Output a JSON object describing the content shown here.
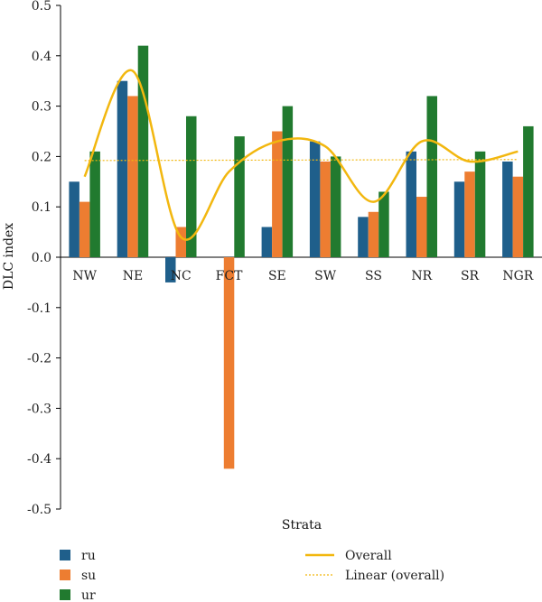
{
  "chart_data": {
    "type": "bar",
    "xlabel": "Strata",
    "ylabel": "DLC index",
    "ylim": [
      -0.5,
      0.5
    ],
    "yticks": [
      "-0.5",
      "-0.4",
      "-0.3",
      "-0.2",
      "-0.1",
      "0.0",
      "0.1",
      "0.2",
      "0.3",
      "0.4",
      "0.5"
    ],
    "categories": [
      "NW",
      "NE",
      "NC",
      "FCT",
      "SE",
      "SW",
      "SS",
      "NR",
      "SR",
      "NGR"
    ],
    "series": [
      {
        "name": "ru",
        "color": "#1f5f8b",
        "values": [
          0.15,
          0.35,
          -0.05,
          0.0,
          0.06,
          0.23,
          0.08,
          0.21,
          0.15,
          0.19
        ]
      },
      {
        "name": "su",
        "color": "#ed7d31",
        "values": [
          0.11,
          0.32,
          0.06,
          -0.42,
          0.25,
          0.19,
          0.09,
          0.12,
          0.17,
          0.16
        ]
      },
      {
        "name": "ur",
        "color": "#217a2f",
        "values": [
          0.21,
          0.42,
          0.28,
          0.24,
          0.3,
          0.2,
          0.13,
          0.32,
          0.21,
          0.26
        ]
      }
    ],
    "overall": {
      "name": "Overall",
      "color": "#f2b70f",
      "values": [
        0.16,
        0.37,
        0.04,
        0.17,
        0.23,
        0.22,
        0.11,
        0.23,
        0.19,
        0.21
      ]
    },
    "trend": {
      "name": "Linear (overall)",
      "color": "#f2b70f",
      "start": 0.192,
      "end": 0.194
    },
    "legend_position": "bottom"
  }
}
